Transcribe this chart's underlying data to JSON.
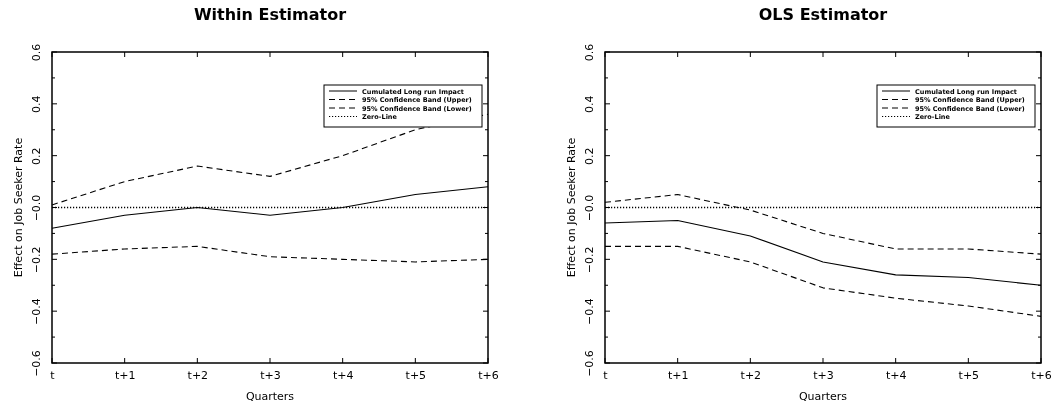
{
  "chart_data": [
    {
      "type": "line",
      "title": "Within Estimator",
      "xlabel": "Quarters",
      "ylabel": "Effect on Job Seeker Rate",
      "categories": [
        "t",
        "t+1",
        "t+2",
        "t+3",
        "t+4",
        "t+5",
        "t+6"
      ],
      "ylim": [
        -0.6,
        0.6
      ],
      "yticks": [
        {
          "value": -0.6,
          "label": "−0.6"
        },
        {
          "value": -0.5,
          "label": null
        },
        {
          "value": -0.4,
          "label": "−0.4"
        },
        {
          "value": -0.3,
          "label": null
        },
        {
          "value": -0.2,
          "label": "−0.2"
        },
        {
          "value": -0.1,
          "label": null
        },
        {
          "value": 0,
          "label": "−0.0"
        },
        {
          "value": 0.1,
          "label": null
        },
        0.2,
        {
          "value": 0.3,
          "label": null
        },
        0.4,
        {
          "value": 0.5,
          "label": null
        },
        0.6
      ],
      "legend": "top right",
      "grid": false,
      "series": [
        {
          "name": "Cumulated Long run Impact",
          "color": "#000000",
          "line_style": "solid",
          "values": [
            -0.08,
            -0.03,
            0.0,
            -0.03,
            0.0,
            0.05,
            0.08
          ]
        },
        {
          "name": "95% Confidence Band (Upper)",
          "color": "#000000",
          "line_style": "dashed",
          "values": [
            0.01,
            0.1,
            0.16,
            0.12,
            0.2,
            0.3,
            0.36
          ]
        },
        {
          "name": "95% Confidence Band (Lower)",
          "color": "#000000",
          "line_style": "dashed",
          "values": [
            -0.18,
            -0.16,
            -0.15,
            -0.19,
            -0.2,
            -0.21,
            -0.2
          ]
        },
        {
          "name": "Zero-Line",
          "color": "#000000",
          "line_style": "dotted",
          "values": [
            0,
            0,
            0,
            0,
            0,
            0,
            0
          ]
        }
      ]
    },
    {
      "type": "line",
      "title": "OLS Estimator",
      "xlabel": "Quarters",
      "ylabel": "Effect on Job Seeker Rate",
      "categories": [
        "t",
        "t+1",
        "t+2",
        "t+3",
        "t+4",
        "t+5",
        "t+6"
      ],
      "ylim": [
        -0.6,
        0.6
      ],
      "yticks": [
        {
          "value": -0.6,
          "label": "−0.6"
        },
        {
          "value": -0.5,
          "label": null
        },
        {
          "value": -0.4,
          "label": "−0.4"
        },
        {
          "value": -0.3,
          "label": null
        },
        {
          "value": -0.2,
          "label": "−0.2"
        },
        {
          "value": -0.1,
          "label": null
        },
        {
          "value": 0,
          "label": "−0.0"
        },
        {
          "value": 0.1,
          "label": null
        },
        0.2,
        {
          "value": 0.3,
          "label": null
        },
        0.4,
        {
          "value": 0.5,
          "label": null
        },
        0.6
      ],
      "legend": "top right",
      "grid": false,
      "series": [
        {
          "name": "Cumulated Long run Impact",
          "color": "#000000",
          "line_style": "solid",
          "values": [
            -0.06,
            -0.05,
            -0.11,
            -0.21,
            -0.26,
            -0.27,
            -0.3
          ]
        },
        {
          "name": "95% Confidence Band (Upper)",
          "color": "#000000",
          "line_style": "dashed",
          "values": [
            0.02,
            0.05,
            -0.01,
            -0.1,
            -0.16,
            -0.16,
            -0.18
          ]
        },
        {
          "name": "95% Confidence Band (Lower)",
          "color": "#000000",
          "line_style": "dashed",
          "values": [
            -0.15,
            -0.15,
            -0.21,
            -0.31,
            -0.35,
            -0.38,
            -0.42
          ]
        },
        {
          "name": "Zero-Line",
          "color": "#000000",
          "line_style": "dotted",
          "values": [
            0,
            0,
            0,
            0,
            0,
            0,
            0
          ]
        }
      ]
    }
  ]
}
